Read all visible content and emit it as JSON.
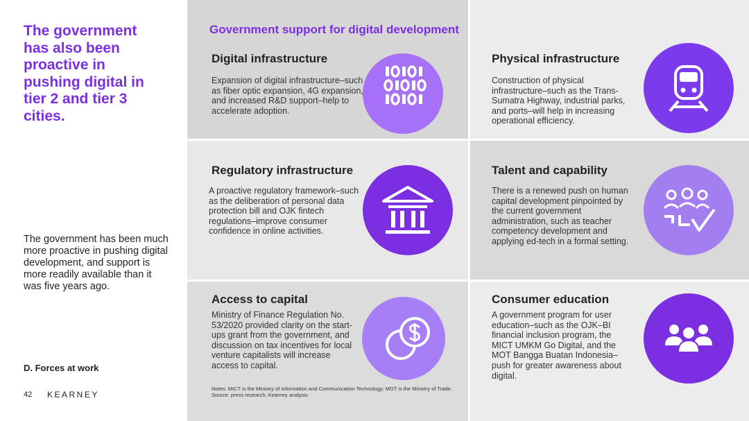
{
  "sidebar": {
    "headline": "The government has also been proactive in pushing digital in tier 2 and tier 3 cities.",
    "body": "The government has been much more proactive in pushing digital development, and support is more readily available than it was five years ago.",
    "section": "D. Forces at work",
    "page_number": "42",
    "brand": "KEARNEY"
  },
  "panel": {
    "title": "Government support for digital development",
    "cards": [
      {
        "heading": "Digital infrastructure",
        "text": "Expansion of digital infrastructure–such as fiber optic expansion, 4G expansion, and increased R&D support–help to accelerate adoption."
      },
      {
        "heading": "Physical infrastructure",
        "text": "Construction of physical infrastructure–such as the Trans-Sumatra Highway, industrial parks, and ports–will help in increasing operational efficiency."
      },
      {
        "heading": "Regulatory infrastructure",
        "text": "A proactive regulatory framework–such as the deliberation of personal data protection bill and OJK fintech regulations–improve consumer confidence in online activities."
      },
      {
        "heading": "Talent and capability",
        "text": "There is a renewed push on human capital development pinpointed by the current government administration, such as teacher competency development and applying ed-tech in a formal setting."
      },
      {
        "heading": "Access to capital",
        "text": "Ministry of Finance Regulation No. 53/2020 provided clarity on the start-ups grant from the government, and discussion on tax incentives for local venture capitalists will increase access to capital."
      },
      {
        "heading": "Consumer education",
        "text": "A government program for user education–such as the OJK–BI financial inclusion program, the MICT UMKM Go Digital, and the MOT Bangga Buatan Indonesia–push for greater awareness about digital."
      }
    ],
    "notes": [
      "Notes: MICT is the Ministry of Information and Communication Technology; MOT is the Ministry of Trade.",
      "Source: press research; Kearney analysis"
    ]
  }
}
